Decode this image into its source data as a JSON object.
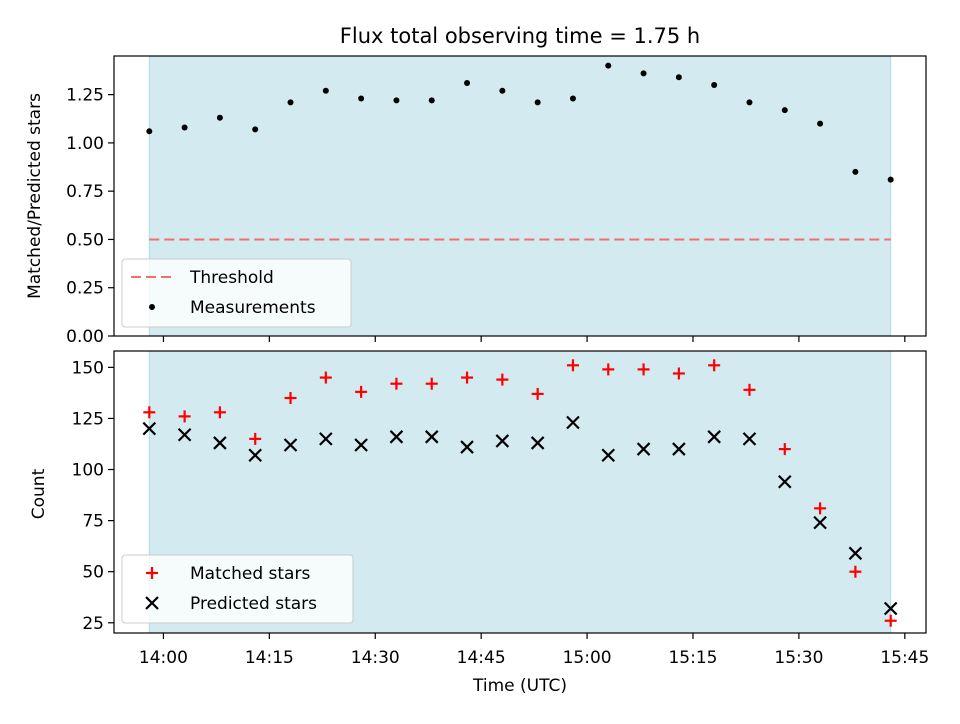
{
  "chart_data": [
    {
      "type": "scatter",
      "title": "Flux total observing time = 1.75 h",
      "xlabel": "",
      "ylabel": "Matched/Predicted stars",
      "ylim": [
        0,
        1.45
      ],
      "yticks": [
        "0.00",
        "0.25",
        "0.50",
        "0.75",
        "1.00",
        "1.25"
      ],
      "ytick_values": [
        0,
        0.25,
        0.5,
        0.75,
        1.0,
        1.25
      ],
      "shaded_span_minutes": [
        -2,
        103
      ],
      "xlim_minutes": [
        -7,
        108
      ],
      "threshold": {
        "name": "Threshold",
        "value": 0.5,
        "color": "#f07070"
      },
      "series": [
        {
          "name": "Measurements",
          "color": "#000000",
          "x_minutes": [
            -2,
            3,
            8,
            13,
            18,
            23,
            28,
            33,
            38,
            43,
            48,
            53,
            58,
            63,
            68,
            73,
            78,
            83,
            88,
            93,
            98,
            103
          ],
          "values": [
            1.06,
            1.08,
            1.13,
            1.07,
            1.21,
            1.27,
            1.23,
            1.22,
            1.22,
            1.31,
            1.27,
            1.21,
            1.23,
            1.4,
            1.36,
            1.34,
            1.3,
            1.21,
            1.17,
            1.1,
            0.85,
            0.81
          ]
        }
      ],
      "legend": [
        "Threshold",
        "Measurements"
      ]
    },
    {
      "type": "scatter",
      "title": "",
      "xlabel": "Time (UTC)",
      "ylabel": "Count",
      "ylim": [
        20,
        158
      ],
      "yticks": [
        "25",
        "50",
        "75",
        "100",
        "125",
        "150"
      ],
      "ytick_values": [
        25,
        50,
        75,
        100,
        125,
        150
      ],
      "xticks": [
        "14:00",
        "14:15",
        "14:30",
        "14:45",
        "15:00",
        "15:15",
        "15:30",
        "15:45"
      ],
      "xtick_minutes": [
        0,
        15,
        30,
        45,
        60,
        75,
        90,
        105
      ],
      "shaded_span_minutes": [
        -2,
        103
      ],
      "xlim_minutes": [
        -7,
        108
      ],
      "series": [
        {
          "name": "Matched stars",
          "marker": "plus",
          "color": "#ff0000",
          "x_minutes": [
            -2,
            3,
            8,
            13,
            18,
            23,
            28,
            33,
            38,
            43,
            48,
            53,
            58,
            63,
            68,
            73,
            78,
            83,
            88,
            93,
            98,
            103
          ],
          "values": [
            128,
            126,
            128,
            115,
            135,
            145,
            138,
            142,
            142,
            145,
            144,
            137,
            151,
            149,
            149,
            147,
            151,
            139,
            110,
            81,
            50,
            26
          ]
        },
        {
          "name": "Predicted stars",
          "marker": "x",
          "color": "#000000",
          "x_minutes": [
            -2,
            3,
            8,
            13,
            18,
            23,
            28,
            33,
            38,
            43,
            48,
            53,
            58,
            63,
            68,
            73,
            78,
            83,
            88,
            93,
            98,
            103
          ],
          "values": [
            120,
            117,
            113,
            107,
            112,
            115,
            112,
            116,
            116,
            111,
            114,
            113,
            123,
            107,
            110,
            110,
            116,
            115,
            94,
            74,
            59,
            32
          ]
        }
      ],
      "legend": [
        "Matched stars",
        "Predicted stars"
      ]
    }
  ],
  "colors": {
    "span": "#d3eaf0",
    "span_edge": "#aed8e3"
  }
}
